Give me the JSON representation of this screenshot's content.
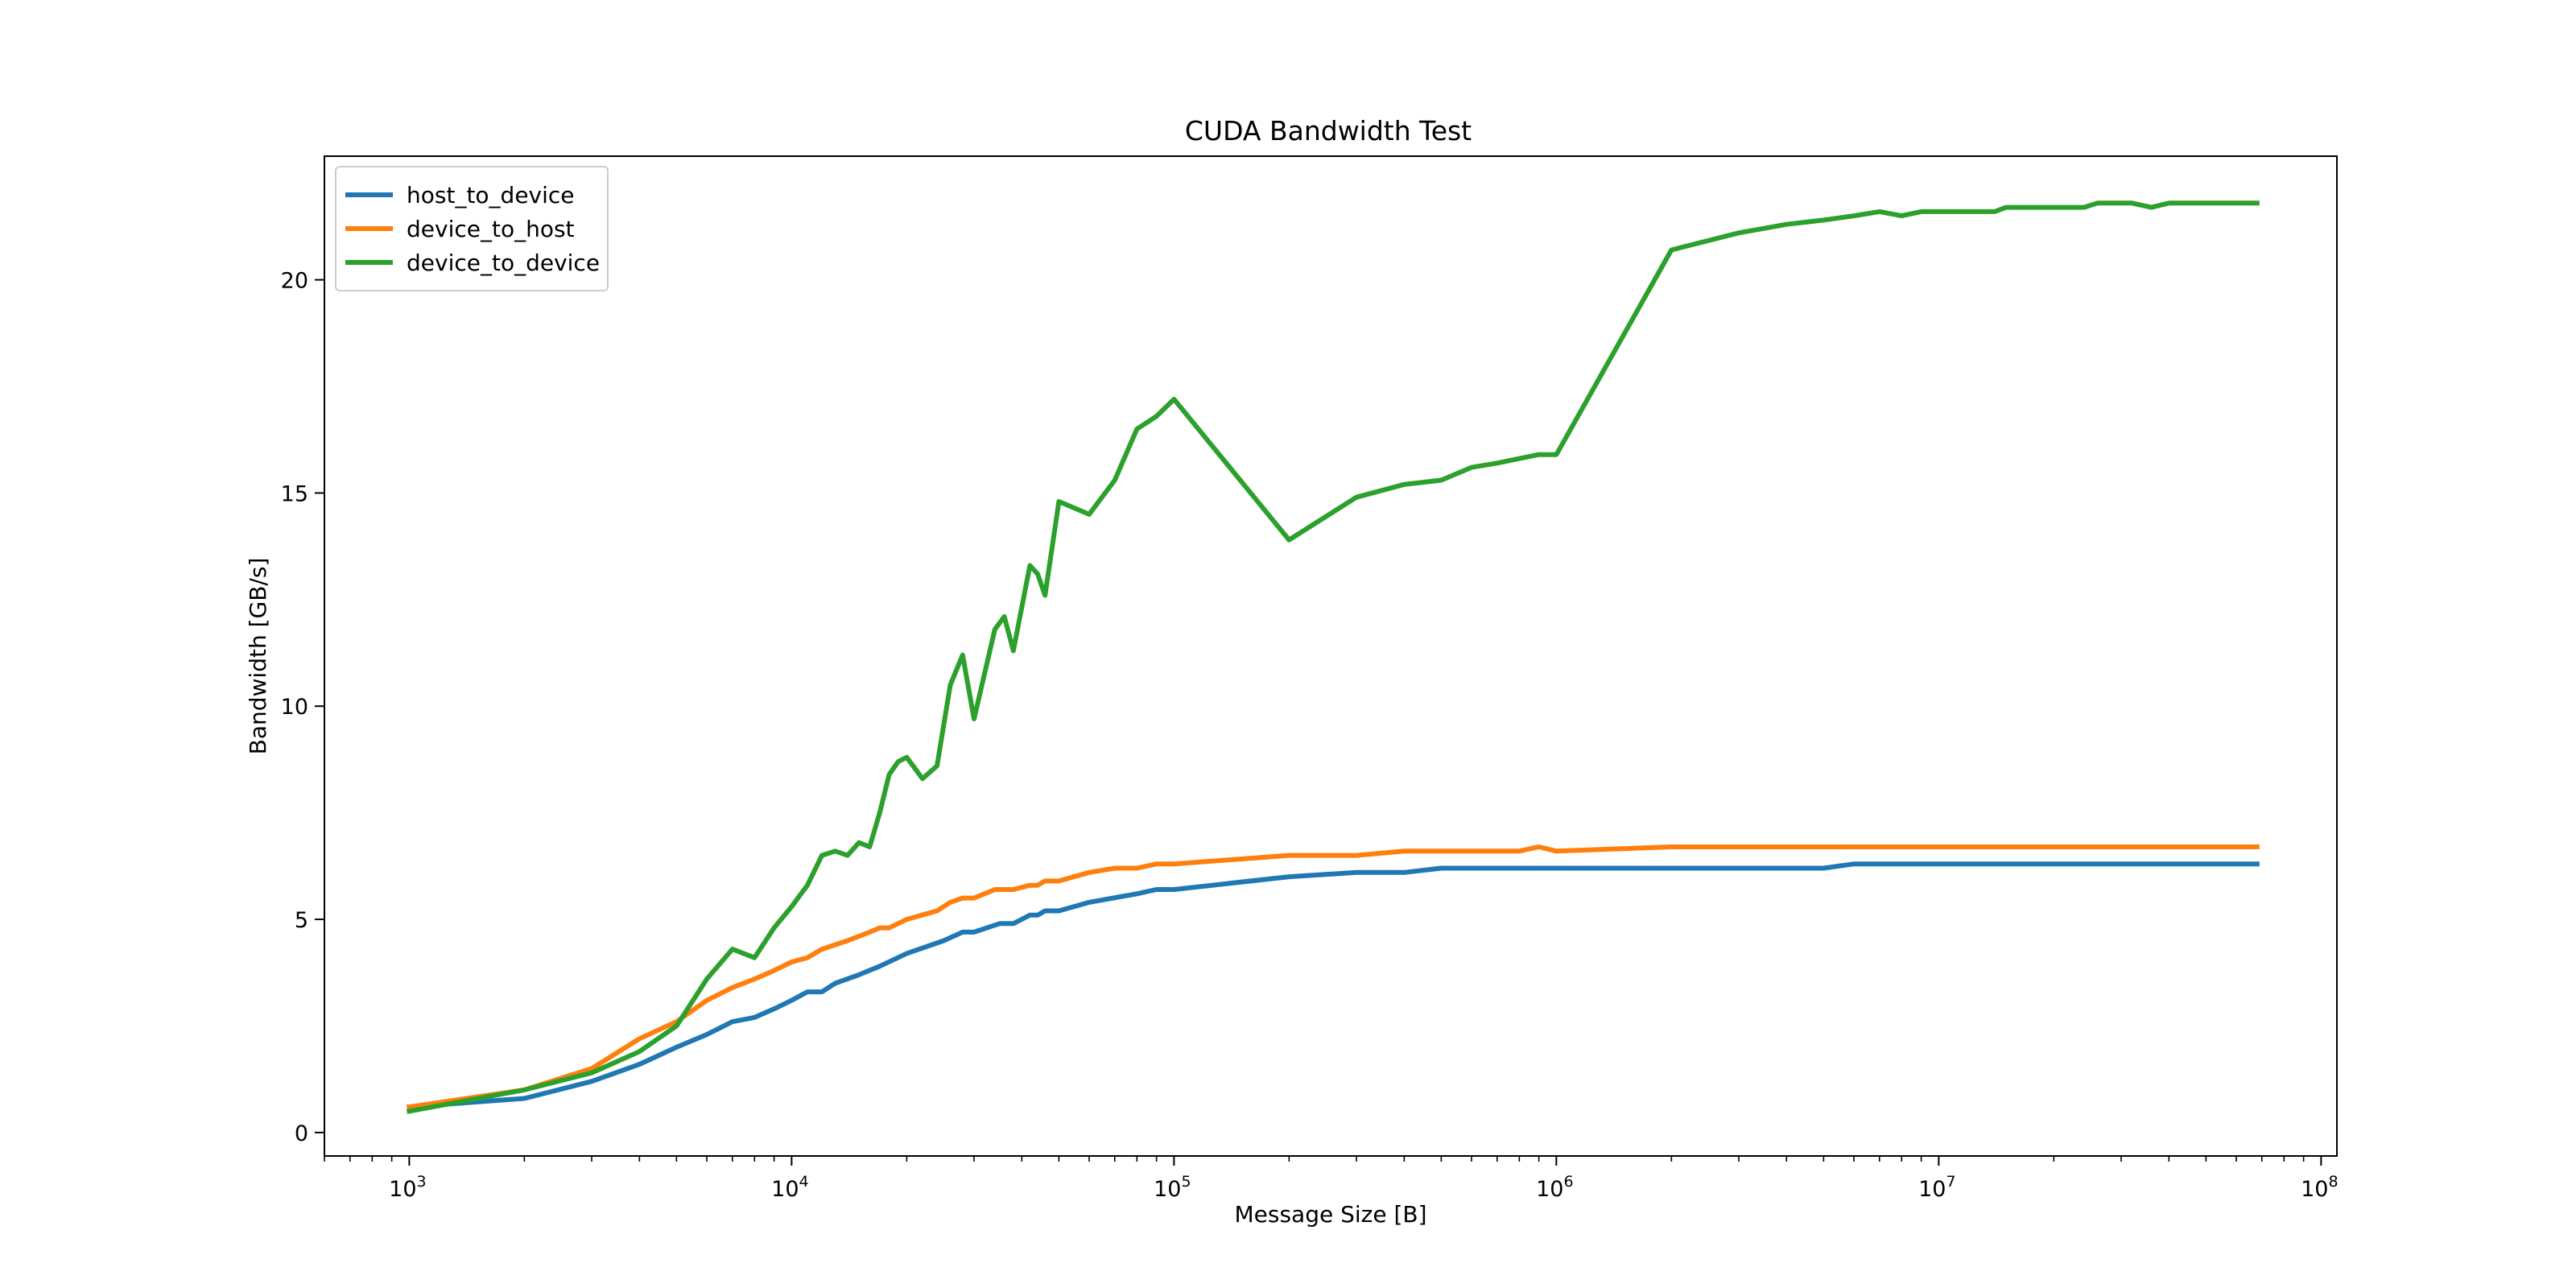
{
  "chart_data": {
    "type": "line",
    "title": "CUDA Bandwidth Test",
    "xlabel": "Message Size [B]",
    "ylabel": "Bandwidth [GB/s]",
    "xscale": "log",
    "xlim": [
      600,
      110000000
    ],
    "ylim": [
      -0.55,
      22.9
    ],
    "grid": false,
    "legend_position": "top-left",
    "x_ticks": [
      {
        "value": 1000,
        "base": "10",
        "exp": "3"
      },
      {
        "value": 10000,
        "base": "10",
        "exp": "4"
      },
      {
        "value": 100000,
        "base": "10",
        "exp": "5"
      },
      {
        "value": 1000000,
        "base": "10",
        "exp": "6"
      },
      {
        "value": 10000000,
        "base": "10",
        "exp": "7"
      },
      {
        "value": 100000000,
        "base": "10",
        "exp": "8"
      }
    ],
    "y_ticks": [
      0,
      5,
      10,
      15,
      20
    ],
    "series": [
      {
        "name": "host_to_device",
        "color": "#1f77b4",
        "points": [
          [
            1000,
            0.6
          ],
          [
            2000,
            0.8
          ],
          [
            3000,
            1.2
          ],
          [
            4000,
            1.6
          ],
          [
            5000,
            2.0
          ],
          [
            6000,
            2.3
          ],
          [
            7000,
            2.6
          ],
          [
            8000,
            2.7
          ],
          [
            9000,
            2.9
          ],
          [
            10000,
            3.1
          ],
          [
            11000,
            3.3
          ],
          [
            12000,
            3.3
          ],
          [
            13000,
            3.5
          ],
          [
            15000,
            3.7
          ],
          [
            17000,
            3.9
          ],
          [
            20000,
            4.2
          ],
          [
            25000,
            4.5
          ],
          [
            28000,
            4.7
          ],
          [
            30000,
            4.7
          ],
          [
            35000,
            4.9
          ],
          [
            38000,
            4.9
          ],
          [
            42000,
            5.1
          ],
          [
            44000,
            5.1
          ],
          [
            46000,
            5.2
          ],
          [
            50000,
            5.2
          ],
          [
            60000,
            5.4
          ],
          [
            80000,
            5.6
          ],
          [
            90000,
            5.7
          ],
          [
            100000,
            5.7
          ],
          [
            200000,
            6.0
          ],
          [
            300000,
            6.1
          ],
          [
            400000,
            6.1
          ],
          [
            500000,
            6.2
          ],
          [
            1000000,
            6.2
          ],
          [
            2000000,
            6.2
          ],
          [
            5000000,
            6.2
          ],
          [
            6000000,
            6.3
          ],
          [
            10000000,
            6.3
          ],
          [
            68000000,
            6.3
          ]
        ]
      },
      {
        "name": "device_to_host",
        "color": "#ff7f0e",
        "points": [
          [
            1000,
            0.6
          ],
          [
            2000,
            1.0
          ],
          [
            3000,
            1.5
          ],
          [
            4000,
            2.2
          ],
          [
            5000,
            2.6
          ],
          [
            6000,
            3.1
          ],
          [
            7000,
            3.4
          ],
          [
            8000,
            3.6
          ],
          [
            9000,
            3.8
          ],
          [
            10000,
            4.0
          ],
          [
            11000,
            4.1
          ],
          [
            12000,
            4.3
          ],
          [
            14000,
            4.5
          ],
          [
            16000,
            4.7
          ],
          [
            17000,
            4.8
          ],
          [
            18000,
            4.8
          ],
          [
            20000,
            5.0
          ],
          [
            24000,
            5.2
          ],
          [
            26000,
            5.4
          ],
          [
            28000,
            5.5
          ],
          [
            30000,
            5.5
          ],
          [
            34000,
            5.7
          ],
          [
            38000,
            5.7
          ],
          [
            42000,
            5.8
          ],
          [
            44000,
            5.8
          ],
          [
            46000,
            5.9
          ],
          [
            50000,
            5.9
          ],
          [
            60000,
            6.1
          ],
          [
            70000,
            6.2
          ],
          [
            80000,
            6.2
          ],
          [
            90000,
            6.3
          ],
          [
            100000,
            6.3
          ],
          [
            200000,
            6.5
          ],
          [
            300000,
            6.5
          ],
          [
            400000,
            6.6
          ],
          [
            800000,
            6.6
          ],
          [
            900000,
            6.7
          ],
          [
            1000000,
            6.6
          ],
          [
            2000000,
            6.7
          ],
          [
            68000000,
            6.7
          ]
        ]
      },
      {
        "name": "device_to_device",
        "color": "#2ca02c",
        "points": [
          [
            1000,
            0.5
          ],
          [
            2000,
            1.0
          ],
          [
            3000,
            1.4
          ],
          [
            4000,
            1.9
          ],
          [
            5000,
            2.5
          ],
          [
            6000,
            3.6
          ],
          [
            7000,
            4.3
          ],
          [
            8000,
            4.1
          ],
          [
            9000,
            4.8
          ],
          [
            10000,
            5.3
          ],
          [
            11000,
            5.8
          ],
          [
            12000,
            6.5
          ],
          [
            13000,
            6.6
          ],
          [
            14000,
            6.5
          ],
          [
            15000,
            6.8
          ],
          [
            16000,
            6.7
          ],
          [
            17000,
            7.5
          ],
          [
            18000,
            8.4
          ],
          [
            19000,
            8.7
          ],
          [
            20000,
            8.8
          ],
          [
            22000,
            8.3
          ],
          [
            24000,
            8.6
          ],
          [
            26000,
            10.5
          ],
          [
            28000,
            11.2
          ],
          [
            30000,
            9.7
          ],
          [
            34000,
            11.8
          ],
          [
            36000,
            12.1
          ],
          [
            38000,
            11.3
          ],
          [
            42000,
            13.3
          ],
          [
            44000,
            13.1
          ],
          [
            46000,
            12.6
          ],
          [
            50000,
            14.8
          ],
          [
            60000,
            14.5
          ],
          [
            70000,
            15.3
          ],
          [
            80000,
            16.5
          ],
          [
            90000,
            16.8
          ],
          [
            100000,
            17.2
          ],
          [
            200000,
            13.9
          ],
          [
            300000,
            14.9
          ],
          [
            400000,
            15.2
          ],
          [
            500000,
            15.3
          ],
          [
            600000,
            15.6
          ],
          [
            700000,
            15.7
          ],
          [
            900000,
            15.9
          ],
          [
            1000000,
            15.9
          ],
          [
            2000000,
            20.7
          ],
          [
            3000000,
            21.1
          ],
          [
            4000000,
            21.3
          ],
          [
            5000000,
            21.4
          ],
          [
            6000000,
            21.5
          ],
          [
            7000000,
            21.6
          ],
          [
            8000000,
            21.5
          ],
          [
            9000000,
            21.6
          ],
          [
            14000000,
            21.6
          ],
          [
            15000000,
            21.7
          ],
          [
            24000000,
            21.7
          ],
          [
            26000000,
            21.8
          ],
          [
            32000000,
            21.8
          ],
          [
            36000000,
            21.7
          ],
          [
            40000000,
            21.8
          ],
          [
            68000000,
            21.8
          ]
        ]
      }
    ]
  }
}
